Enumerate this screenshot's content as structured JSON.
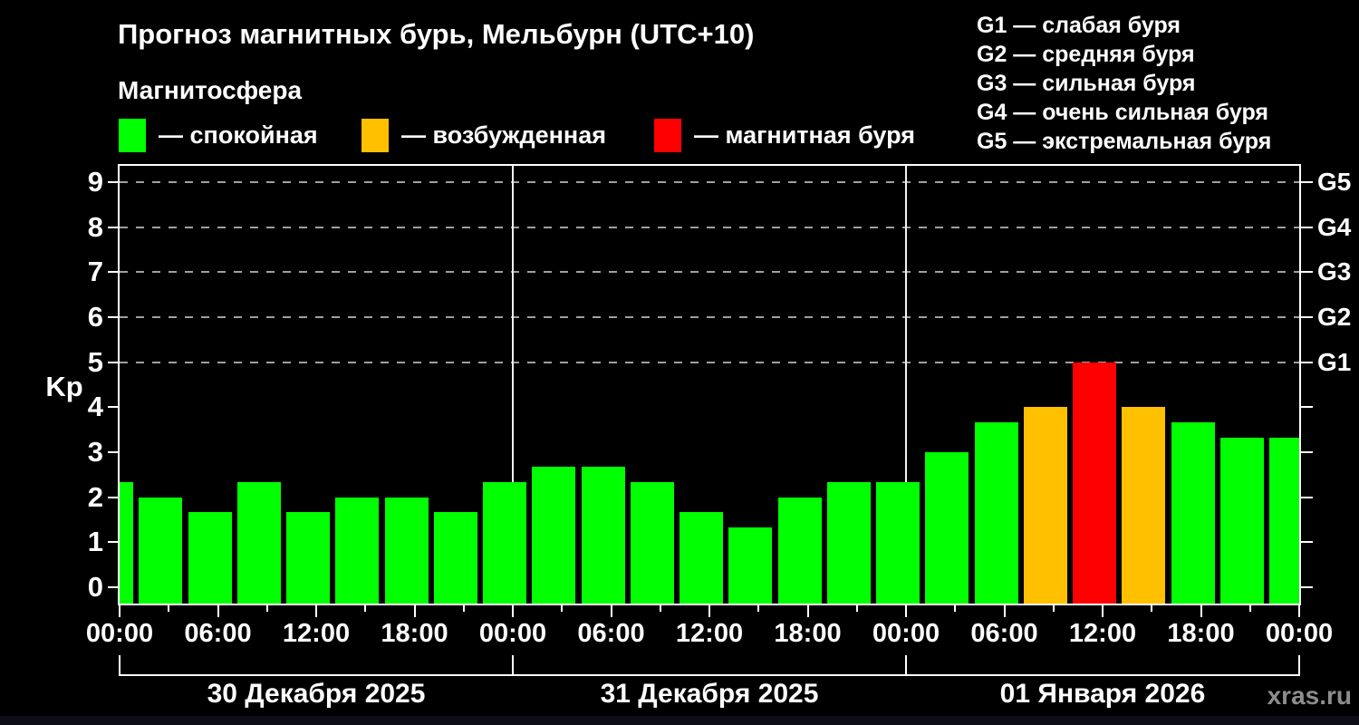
{
  "header": {
    "title": "Прогноз магнитных бурь, Мельбурн (UTC+10)",
    "subtitle": "Магнитосфера",
    "legend": [
      {
        "key": "quiet",
        "label": "— спокойная",
        "color": "#00ff00"
      },
      {
        "key": "excited",
        "label": "— возбужденная",
        "color": "#ffc000"
      },
      {
        "key": "storm",
        "label": "— магнитная буря",
        "color": "#ff0000"
      }
    ],
    "g_scale": [
      "G1 — слабая буря",
      "G2 — средняя буря",
      "G3 — сильная буря",
      "G4 — очень сильная буря",
      "G5 — экстремальная буря"
    ]
  },
  "watermark": "xras.ru",
  "chart_data": {
    "type": "bar",
    "title": "Прогноз магнитных бурь, Мельбурн (UTC+10)",
    "ylabel": "Kp",
    "ylim": [
      0,
      9
    ],
    "y_ticks": [
      0,
      1,
      2,
      3,
      4,
      5,
      6,
      7,
      8,
      9
    ],
    "gridlines_at": [
      5,
      6,
      7,
      8,
      9
    ],
    "right_axis_labels": [
      {
        "kp": 5,
        "label": "G1"
      },
      {
        "kp": 6,
        "label": "G2"
      },
      {
        "kp": 7,
        "label": "G3"
      },
      {
        "kp": 8,
        "label": "G4"
      },
      {
        "kp": 9,
        "label": "G5"
      }
    ],
    "x_total_hours": 72,
    "bar_interval_hours": 3,
    "x_tick_label_every_hours": 6,
    "x_tick_labels": [
      "00:00",
      "06:00",
      "12:00",
      "18:00",
      "00:00",
      "06:00",
      "12:00",
      "18:00",
      "00:00",
      "06:00",
      "12:00",
      "18:00",
      "00:00"
    ],
    "days": [
      {
        "label": "30 Декабря 2025"
      },
      {
        "label": "31 Декабря 2025"
      },
      {
        "label": "01 Января 2026"
      }
    ],
    "series": [
      {
        "name": "Kp",
        "x_hours": [
          0,
          3,
          6,
          9,
          12,
          15,
          18,
          21,
          24,
          27,
          30,
          33,
          36,
          39,
          42,
          45,
          48,
          51,
          54,
          57,
          60,
          63,
          66,
          69,
          72
        ],
        "values": [
          2.33,
          2.0,
          1.67,
          2.33,
          1.67,
          2.0,
          2.0,
          1.67,
          2.33,
          2.67,
          2.67,
          2.33,
          1.67,
          1.33,
          2.0,
          2.33,
          2.33,
          3.0,
          3.67,
          4.0,
          5.0,
          4.0,
          3.67,
          3.33,
          3.33
        ]
      }
    ],
    "color_thresholds": {
      "excited_min_kp": 4,
      "storm_min_kp": 5
    },
    "colors": {
      "quiet": "#00ff00",
      "excited": "#ffc000",
      "storm": "#ff0000"
    },
    "legend_position": "top-left",
    "grid": "dashed-horizontal-on-storm-levels"
  }
}
